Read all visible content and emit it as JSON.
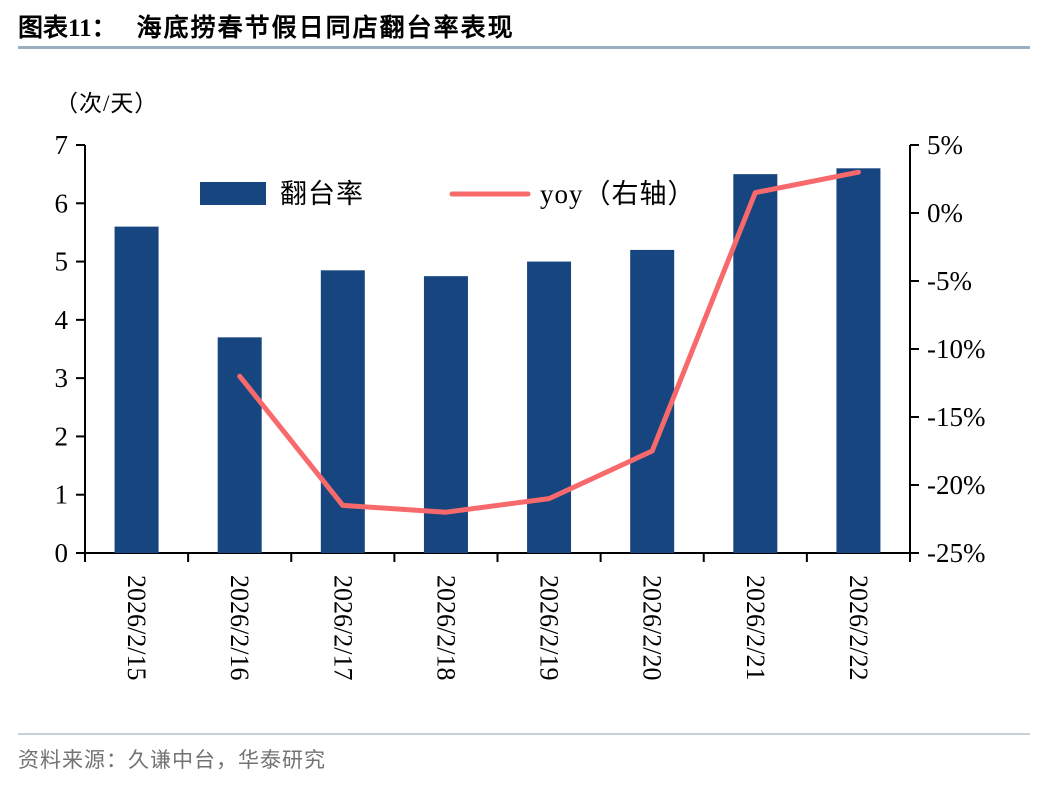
{
  "header": {
    "figure_label": "图表11：",
    "title": "海底捞春节假日同店翻台率表现"
  },
  "unit_label": "（次/天）",
  "source_text": "资料来源：久谦中台，华泰研究",
  "colors": {
    "bar": "#17457f",
    "line": "#f8696b",
    "axis": "#000000",
    "header_rule": "#9bafc3",
    "footer_rule": "#c9cfd6",
    "source_text": "#737373"
  },
  "chart_data": {
    "type": "bar+line",
    "title": "海底捞春节假日同店翻台率表现",
    "unit_left": "（次/天）",
    "categories": [
      "2026/2/15",
      "2026/2/16",
      "2026/2/17",
      "2026/2/18",
      "2026/2/19",
      "2026/2/20",
      "2026/2/21",
      "2026/2/22"
    ],
    "series": [
      {
        "name": "翻台率",
        "type": "bar",
        "axis": "left",
        "values": [
          5.6,
          3.7,
          4.85,
          4.75,
          5.0,
          5.2,
          6.5,
          6.6
        ]
      },
      {
        "name": "yoy（右轴）",
        "type": "line",
        "axis": "right",
        "values": [
          null,
          -12,
          -21.5,
          -22,
          -21,
          -17.5,
          1.5,
          3
        ]
      }
    ],
    "left_axis": {
      "min": 0,
      "max": 7,
      "step": 1,
      "tick_labels": [
        "7",
        "6",
        "5",
        "4",
        "3",
        "2",
        "1",
        "0"
      ]
    },
    "right_axis": {
      "min": -25,
      "max": 5,
      "step": 5,
      "tick_labels": [
        "5%",
        "0%",
        "-5%",
        "-10%",
        "-15%",
        "-20%",
        "-25%"
      ]
    },
    "legend": [
      {
        "label": "翻台率",
        "type": "bar"
      },
      {
        "label": "yoy（右轴）",
        "type": "line"
      }
    ],
    "grid": false,
    "legend_position": "top-inside"
  }
}
